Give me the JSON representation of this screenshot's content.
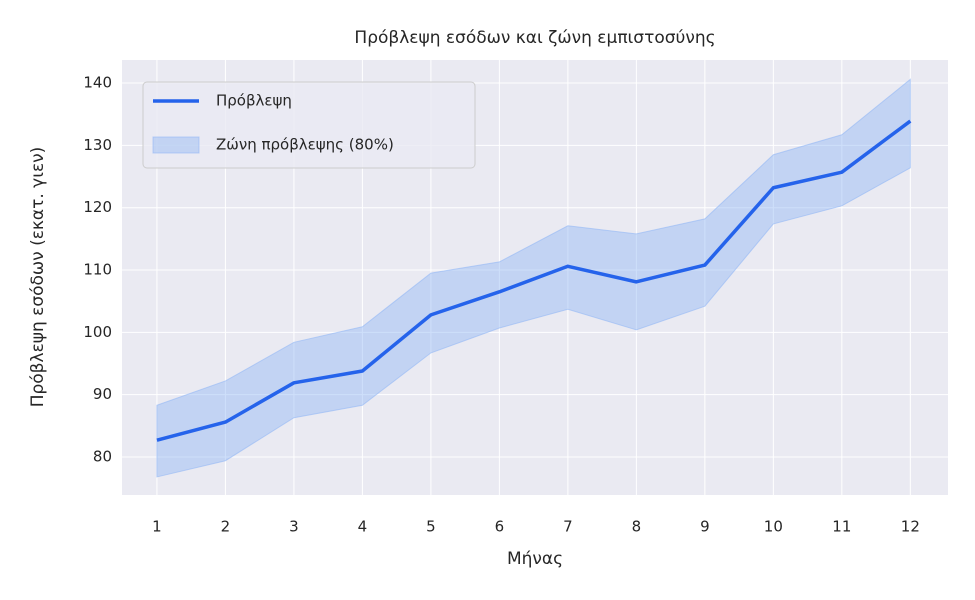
{
  "chart_data": {
    "type": "line",
    "title": "Πρόβλεψη εσόδων και ζώνη εμπιστοσύνης",
    "xlabel": "Μήνας",
    "ylabel": "Πρόβλεψη εσόδων (εκατ. γιεν)",
    "x": [
      1,
      2,
      3,
      4,
      5,
      6,
      7,
      8,
      9,
      10,
      11,
      12
    ],
    "series": [
      {
        "name": "Πρόβλεψη",
        "color": "#2563eb",
        "values": [
          82.7,
          85.6,
          91.9,
          93.8,
          102.8,
          106.5,
          110.6,
          108.1,
          110.8,
          123.2,
          125.7,
          133.9
        ]
      }
    ],
    "band": {
      "name": "Ζώνη πρόβλεψης (80%)",
      "color": "#93b8f5",
      "lower": [
        76.8,
        79.4,
        86.3,
        88.3,
        96.7,
        100.7,
        103.7,
        100.4,
        104.2,
        117.4,
        120.3,
        126.4
      ],
      "upper": [
        88.3,
        92.2,
        98.4,
        100.9,
        109.5,
        111.3,
        117.1,
        115.8,
        118.2,
        128.5,
        131.7,
        140.6
      ]
    },
    "xlim": [
      0.49,
      12.55
    ],
    "ylim": [
      73.9,
      143.7
    ],
    "xticks": [
      1,
      2,
      3,
      4,
      5,
      6,
      7,
      8,
      9,
      10,
      11,
      12
    ],
    "yticks": [
      80,
      90,
      100,
      110,
      120,
      130,
      140
    ],
    "grid": true,
    "legend": "upper-left"
  }
}
